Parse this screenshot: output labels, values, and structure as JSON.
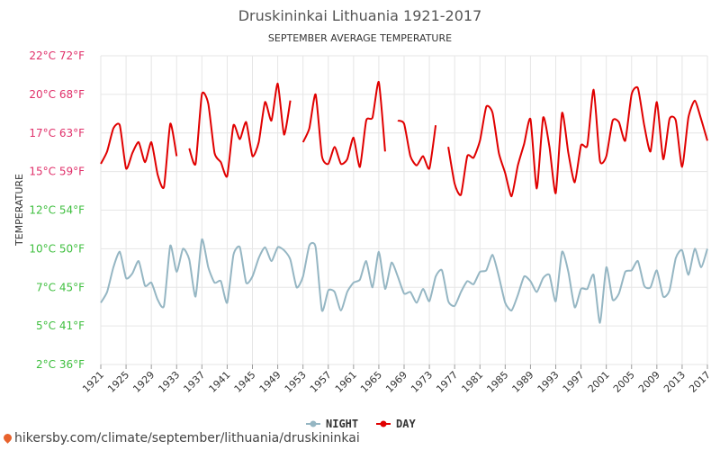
{
  "colors": {
    "day": "#e00000",
    "night": "#95b6c3",
    "grid": "#e6e6e6",
    "ytick_top": "#e0306a",
    "ytick_bottom": "#3fbf3f"
  },
  "footer": {
    "url": "hikersby.com/climate/september/lithuania/druskininkai"
  },
  "chart_data": {
    "type": "line",
    "title": "Druskininkai Lithuania 1921-2017",
    "subtitle": "SEPTEMBER AVERAGE TEMPERATURE",
    "ylabel": "TEMPERATURE",
    "ylim": [
      2.5,
      22.5
    ],
    "yticks": [
      {
        "value": 22.5,
        "label": "22°C 72°F"
      },
      {
        "value": 20,
        "label": "20°C 68°F"
      },
      {
        "value": 17.5,
        "label": "17°C 63°F"
      },
      {
        "value": 15,
        "label": "15°C 59°F"
      },
      {
        "value": 12.5,
        "label": "12°C 54°F"
      },
      {
        "value": 10,
        "label": "10°C 50°F"
      },
      {
        "value": 7.5,
        "label": "7°C 45°F"
      },
      {
        "value": 5,
        "label": "5°C 41°F"
      },
      {
        "value": 2.5,
        "label": "2°C 36°F"
      }
    ],
    "xlim": [
      1921,
      2017
    ],
    "xticks": [
      1921,
      1925,
      1929,
      1933,
      1937,
      1941,
      1945,
      1949,
      1953,
      1957,
      1961,
      1965,
      1969,
      1973,
      1977,
      1981,
      1985,
      1989,
      1993,
      1997,
      2001,
      2005,
      2009,
      2013,
      2017
    ],
    "legend": [
      {
        "key": "night",
        "label": "NIGHT"
      },
      {
        "key": "day",
        "label": "DAY"
      }
    ],
    "series": [
      {
        "name": "DAY",
        "points": [
          [
            1921,
            15.5
          ],
          [
            1922,
            16.3
          ],
          [
            1923,
            17.8
          ],
          [
            1924,
            18.0
          ],
          [
            1925,
            15.2
          ],
          [
            1926,
            16.2
          ],
          [
            1927,
            16.9
          ],
          [
            1928,
            15.6
          ],
          [
            1929,
            16.9
          ],
          [
            1930,
            14.8
          ],
          [
            1931,
            14.0
          ],
          [
            1932,
            18.1
          ],
          [
            1933,
            16.0
          ],
          null,
          [
            1935,
            16.5
          ],
          [
            1936,
            15.5
          ],
          [
            1937,
            20.0
          ],
          [
            1938,
            19.4
          ],
          [
            1939,
            16.2
          ],
          [
            1940,
            15.6
          ],
          [
            1941,
            14.7
          ],
          [
            1942,
            18.0
          ],
          [
            1943,
            17.1
          ],
          [
            1944,
            18.2
          ],
          [
            1945,
            16.0
          ],
          [
            1946,
            16.9
          ],
          [
            1947,
            19.5
          ],
          [
            1948,
            18.3
          ],
          [
            1949,
            20.7
          ],
          [
            1950,
            17.4
          ],
          [
            1951,
            19.6
          ],
          null,
          [
            1953,
            16.9
          ],
          [
            1954,
            17.8
          ],
          [
            1955,
            20.0
          ],
          [
            1956,
            16.0
          ],
          [
            1957,
            15.5
          ],
          [
            1958,
            16.6
          ],
          [
            1959,
            15.5
          ],
          [
            1960,
            15.8
          ],
          [
            1961,
            17.2
          ],
          [
            1962,
            15.3
          ],
          [
            1963,
            18.3
          ],
          [
            1964,
            18.5
          ],
          [
            1965,
            20.8
          ],
          [
            1966,
            16.3
          ],
          null,
          [
            1968,
            18.3
          ],
          [
            1969,
            18.1
          ],
          [
            1970,
            16.0
          ],
          [
            1971,
            15.4
          ],
          [
            1972,
            16.0
          ],
          [
            1973,
            15.2
          ],
          [
            1974,
            18.0
          ],
          null,
          [
            1976,
            16.6
          ],
          [
            1977,
            14.2
          ],
          [
            1978,
            13.5
          ],
          [
            1979,
            16.0
          ],
          [
            1980,
            15.9
          ],
          [
            1981,
            17.0
          ],
          [
            1982,
            19.2
          ],
          [
            1983,
            18.8
          ],
          [
            1984,
            16.2
          ],
          [
            1985,
            14.9
          ],
          [
            1986,
            13.4
          ],
          [
            1987,
            15.4
          ],
          [
            1988,
            16.8
          ],
          [
            1989,
            18.4
          ],
          [
            1990,
            13.9
          ],
          [
            1991,
            18.5
          ],
          [
            1992,
            16.6
          ],
          [
            1993,
            13.6
          ],
          [
            1994,
            18.8
          ],
          [
            1995,
            16.2
          ],
          [
            1996,
            14.3
          ],
          [
            1997,
            16.7
          ],
          [
            1998,
            16.7
          ],
          [
            1999,
            20.3
          ],
          [
            2000,
            15.7
          ],
          [
            2001,
            16.0
          ],
          [
            2002,
            18.3
          ],
          [
            2003,
            18.2
          ],
          [
            2004,
            17.0
          ],
          [
            2005,
            20.0
          ],
          [
            2006,
            20.4
          ],
          [
            2007,
            18.0
          ],
          [
            2008,
            16.3
          ],
          [
            2009,
            19.5
          ],
          [
            2010,
            15.8
          ],
          [
            2011,
            18.4
          ],
          [
            2012,
            18.3
          ],
          [
            2013,
            15.3
          ],
          [
            2014,
            18.5
          ],
          [
            2015,
            19.6
          ],
          [
            2016,
            18.4
          ],
          [
            2017,
            17.0
          ]
        ]
      },
      {
        "name": "NIGHT",
        "points": [
          [
            1921,
            6.5
          ],
          [
            1922,
            7.2
          ],
          [
            1923,
            8.8
          ],
          [
            1924,
            9.8
          ],
          [
            1925,
            8.1
          ],
          [
            1926,
            8.4
          ],
          [
            1927,
            9.2
          ],
          [
            1928,
            7.6
          ],
          [
            1929,
            7.8
          ],
          [
            1930,
            6.7
          ],
          [
            1931,
            6.3
          ],
          [
            1932,
            10.2
          ],
          [
            1933,
            8.5
          ],
          [
            1934,
            10.0
          ],
          [
            1935,
            9.3
          ],
          [
            1936,
            6.9
          ],
          [
            1937,
            10.6
          ],
          [
            1938,
            8.8
          ],
          [
            1939,
            7.8
          ],
          [
            1940,
            7.9
          ],
          [
            1941,
            6.5
          ],
          [
            1942,
            9.6
          ],
          [
            1943,
            10.1
          ],
          [
            1944,
            7.8
          ],
          [
            1945,
            8.2
          ],
          [
            1946,
            9.4
          ],
          [
            1947,
            10.1
          ],
          [
            1948,
            9.2
          ],
          [
            1949,
            10.1
          ],
          [
            1950,
            9.9
          ],
          [
            1951,
            9.3
          ],
          [
            1952,
            7.5
          ],
          [
            1953,
            8.2
          ],
          [
            1954,
            10.2
          ],
          [
            1955,
            10.1
          ],
          [
            1956,
            6.0
          ],
          [
            1957,
            7.3
          ],
          [
            1958,
            7.2
          ],
          [
            1959,
            6.0
          ],
          [
            1960,
            7.2
          ],
          [
            1961,
            7.8
          ],
          [
            1962,
            8.0
          ],
          [
            1963,
            9.2
          ],
          [
            1964,
            7.5
          ],
          [
            1965,
            9.8
          ],
          [
            1966,
            7.4
          ],
          [
            1967,
            9.1
          ],
          [
            1968,
            8.2
          ],
          [
            1969,
            7.1
          ],
          [
            1970,
            7.2
          ],
          [
            1971,
            6.5
          ],
          [
            1972,
            7.4
          ],
          [
            1973,
            6.6
          ],
          [
            1974,
            8.2
          ],
          [
            1975,
            8.6
          ],
          [
            1976,
            6.6
          ],
          [
            1977,
            6.3
          ],
          [
            1978,
            7.2
          ],
          [
            1979,
            7.9
          ],
          [
            1980,
            7.7
          ],
          [
            1981,
            8.5
          ],
          [
            1982,
            8.6
          ],
          [
            1983,
            9.6
          ],
          [
            1984,
            8.2
          ],
          [
            1985,
            6.5
          ],
          [
            1986,
            6.0
          ],
          [
            1987,
            7.0
          ],
          [
            1988,
            8.2
          ],
          [
            1989,
            7.9
          ],
          [
            1990,
            7.2
          ],
          [
            1991,
            8.1
          ],
          [
            1992,
            8.3
          ],
          [
            1993,
            6.6
          ],
          [
            1994,
            9.8
          ],
          [
            1995,
            8.5
          ],
          [
            1996,
            6.2
          ],
          [
            1997,
            7.4
          ],
          [
            1998,
            7.4
          ],
          [
            1999,
            8.3
          ],
          [
            2000,
            5.2
          ],
          [
            2001,
            8.8
          ],
          [
            2002,
            6.7
          ],
          [
            2003,
            7.1
          ],
          [
            2004,
            8.5
          ],
          [
            2005,
            8.6
          ],
          [
            2006,
            9.2
          ],
          [
            2007,
            7.6
          ],
          [
            2008,
            7.5
          ],
          [
            2009,
            8.6
          ],
          [
            2010,
            6.9
          ],
          [
            2011,
            7.3
          ],
          [
            2012,
            9.4
          ],
          [
            2013,
            9.9
          ],
          [
            2014,
            8.3
          ],
          [
            2015,
            10.0
          ],
          [
            2016,
            8.8
          ],
          [
            2017,
            10.0
          ]
        ]
      }
    ]
  }
}
